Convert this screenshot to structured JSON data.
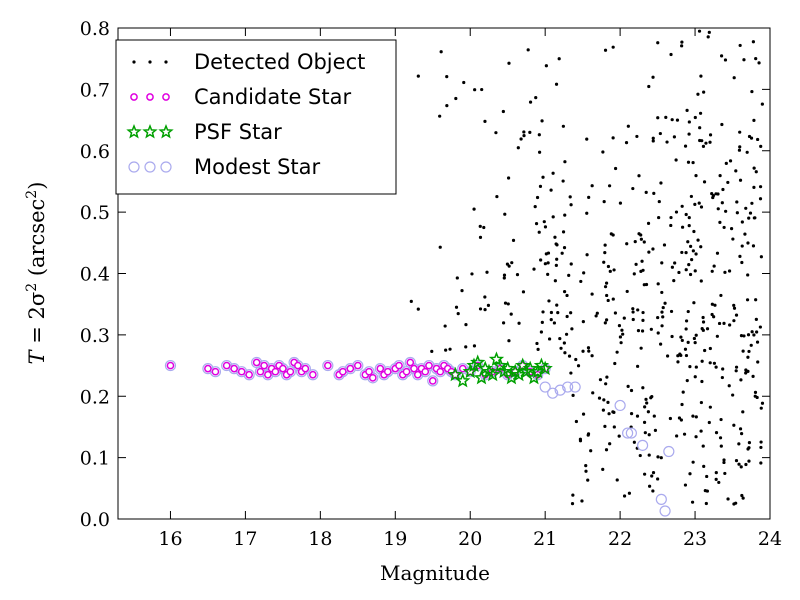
{
  "chart_data": {
    "type": "scatter",
    "title": "",
    "xlabel": "Magnitude",
    "ylabel": {
      "prefix": "T",
      "eq": " = 2σ",
      "sup1": "2",
      "mid": " (arcsec",
      "sup2": "2",
      "suffix": ")"
    },
    "xlim": [
      15.3,
      24
    ],
    "ylim": [
      0.0,
      0.8
    ],
    "xticks": [
      "16",
      "17",
      "18",
      "19",
      "20",
      "21",
      "22",
      "23",
      "24"
    ],
    "yticks": [
      "0.0",
      "0.1",
      "0.2",
      "0.3",
      "0.4",
      "0.5",
      "0.6",
      "0.7",
      "0.8"
    ],
    "grid": false,
    "legend_position": "top-left",
    "series": [
      {
        "name": "Detected Object",
        "marker": "dot",
        "color": "#000000",
        "generated": true,
        "count": 560,
        "x_range": [
          19.0,
          23.9
        ],
        "y_range": [
          0.02,
          0.8
        ]
      },
      {
        "name": "Candidate Star",
        "marker": "circle",
        "color": "#e000e0",
        "x": [
          16.0,
          16.5,
          16.6,
          16.75,
          16.85,
          16.95,
          17.05,
          17.15,
          17.2,
          17.25,
          17.3,
          17.35,
          17.4,
          17.45,
          17.5,
          17.55,
          17.6,
          17.65,
          17.7,
          17.75,
          17.8,
          17.9,
          18.1,
          18.25,
          18.3,
          18.4,
          18.5,
          18.6,
          18.65,
          18.7,
          18.8,
          18.85,
          18.9,
          19.0,
          19.05,
          19.1,
          19.15,
          19.2,
          19.25,
          19.3,
          19.35,
          19.4,
          19.45,
          19.5,
          19.55,
          19.6,
          19.65,
          19.7,
          19.75,
          19.8,
          19.9,
          20.0,
          20.1,
          20.2,
          20.3,
          20.4,
          20.5,
          20.6,
          20.7,
          20.8,
          20.9,
          21.0
        ],
        "y": [
          0.25,
          0.245,
          0.24,
          0.25,
          0.245,
          0.24,
          0.235,
          0.255,
          0.24,
          0.25,
          0.235,
          0.245,
          0.24,
          0.25,
          0.245,
          0.235,
          0.24,
          0.255,
          0.25,
          0.24,
          0.245,
          0.235,
          0.25,
          0.235,
          0.24,
          0.245,
          0.25,
          0.235,
          0.24,
          0.23,
          0.245,
          0.235,
          0.24,
          0.245,
          0.25,
          0.235,
          0.24,
          0.255,
          0.245,
          0.235,
          0.245,
          0.24,
          0.25,
          0.225,
          0.245,
          0.24,
          0.25,
          0.245,
          0.24,
          0.235,
          0.245,
          0.24,
          0.25,
          0.235,
          0.24,
          0.245,
          0.235,
          0.24,
          0.25,
          0.24,
          0.235,
          0.245
        ]
      },
      {
        "name": "PSF Star",
        "marker": "star",
        "color": "#00a000",
        "x": [
          19.8,
          19.9,
          20.0,
          20.05,
          20.1,
          20.15,
          20.2,
          20.25,
          20.3,
          20.35,
          20.4,
          20.45,
          20.5,
          20.55,
          20.6,
          20.65,
          20.7,
          20.75,
          20.8,
          20.85,
          20.9,
          20.95,
          21.0
        ],
        "y": [
          0.235,
          0.225,
          0.24,
          0.25,
          0.255,
          0.23,
          0.245,
          0.24,
          0.235,
          0.26,
          0.25,
          0.24,
          0.245,
          0.23,
          0.24,
          0.235,
          0.25,
          0.24,
          0.245,
          0.23,
          0.24,
          0.25,
          0.245
        ]
      },
      {
        "name": "Modest Star",
        "marker": "open-circle",
        "color": "#aaaaee",
        "x": [
          21.0,
          21.1,
          21.2,
          21.3,
          21.4,
          22.0,
          22.1,
          22.15,
          22.3,
          22.65,
          22.55,
          22.6
        ],
        "y": [
          0.215,
          0.205,
          0.21,
          0.215,
          0.215,
          0.185,
          0.14,
          0.14,
          0.12,
          0.11,
          0.032,
          0.013
        ]
      }
    ]
  }
}
